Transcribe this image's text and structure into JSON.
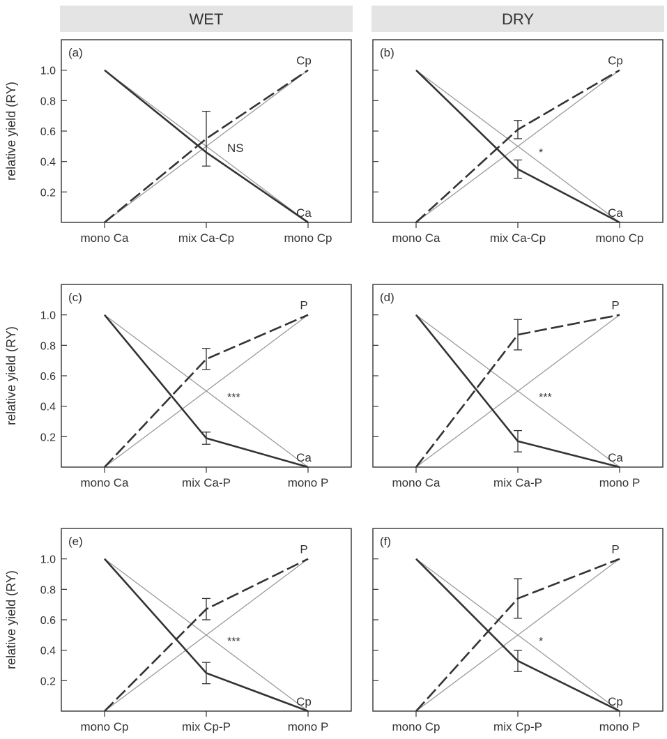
{
  "columns": [
    "WET",
    "DRY"
  ],
  "ylabel": "relative yield (RY)",
  "yticks": [
    0.2,
    0.4,
    0.6,
    0.8,
    1.0
  ],
  "chart_data": [
    {
      "type": "line",
      "panel": "(a)",
      "column": "WET",
      "categories": [
        "mono Ca",
        "mix Ca-Cp",
        "mono Cp"
      ],
      "ylim": [
        0,
        1.2
      ],
      "significance": "NS",
      "series": [
        {
          "name": "Cp",
          "style": "dashed",
          "values": [
            0,
            0.55,
            1.0
          ],
          "error": 0.18
        },
        {
          "name": "Ca",
          "style": "solid",
          "values": [
            1.0,
            0.46,
            0.0
          ],
          "error": 0.0
        }
      ]
    },
    {
      "type": "line",
      "panel": "(b)",
      "column": "DRY",
      "categories": [
        "mono Ca",
        "mix Ca-Cp",
        "mono Cp"
      ],
      "ylim": [
        0,
        1.2
      ],
      "significance": "*",
      "series": [
        {
          "name": "Cp",
          "style": "dashed",
          "values": [
            0,
            0.61,
            1.0
          ],
          "error": 0.06
        },
        {
          "name": "Ca",
          "style": "solid",
          "values": [
            1.0,
            0.35,
            0.0
          ],
          "error": 0.06
        }
      ]
    },
    {
      "type": "line",
      "panel": "(c)",
      "column": "WET",
      "categories": [
        "mono Ca",
        "mix Ca-P",
        "mono P"
      ],
      "ylim": [
        0,
        1.2
      ],
      "significance": "***",
      "series": [
        {
          "name": "P",
          "style": "dashed",
          "values": [
            0,
            0.71,
            1.0
          ],
          "error": 0.07
        },
        {
          "name": "Ca",
          "style": "solid",
          "values": [
            1.0,
            0.19,
            0.0
          ],
          "error": 0.04
        }
      ]
    },
    {
      "type": "line",
      "panel": "(d)",
      "column": "DRY",
      "categories": [
        "mono Ca",
        "mix Ca-P",
        "mono P"
      ],
      "ylim": [
        0,
        1.2
      ],
      "significance": "***",
      "series": [
        {
          "name": "P",
          "style": "dashed",
          "values": [
            0,
            0.87,
            1.0
          ],
          "error": 0.1
        },
        {
          "name": "Ca",
          "style": "solid",
          "values": [
            1.0,
            0.17,
            0.0
          ],
          "error": 0.07
        }
      ]
    },
    {
      "type": "line",
      "panel": "(e)",
      "column": "WET",
      "categories": [
        "mono Cp",
        "mix Cp-P",
        "mono P"
      ],
      "ylim": [
        0,
        1.2
      ],
      "significance": "***",
      "series": [
        {
          "name": "P",
          "style": "dashed",
          "values": [
            0,
            0.67,
            1.0
          ],
          "error": 0.07
        },
        {
          "name": "Cp",
          "style": "solid",
          "values": [
            1.0,
            0.25,
            0.0
          ],
          "error": 0.07
        }
      ]
    },
    {
      "type": "line",
      "panel": "(f)",
      "column": "DRY",
      "categories": [
        "mono Cp",
        "mix Cp-P",
        "mono P"
      ],
      "ylim": [
        0,
        1.2
      ],
      "significance": "*",
      "series": [
        {
          "name": "P",
          "style": "dashed",
          "values": [
            0,
            0.74,
            1.0
          ],
          "error": 0.13
        },
        {
          "name": "Cp",
          "style": "solid",
          "values": [
            1.0,
            0.33,
            0.0
          ],
          "error": 0.07
        }
      ]
    }
  ]
}
